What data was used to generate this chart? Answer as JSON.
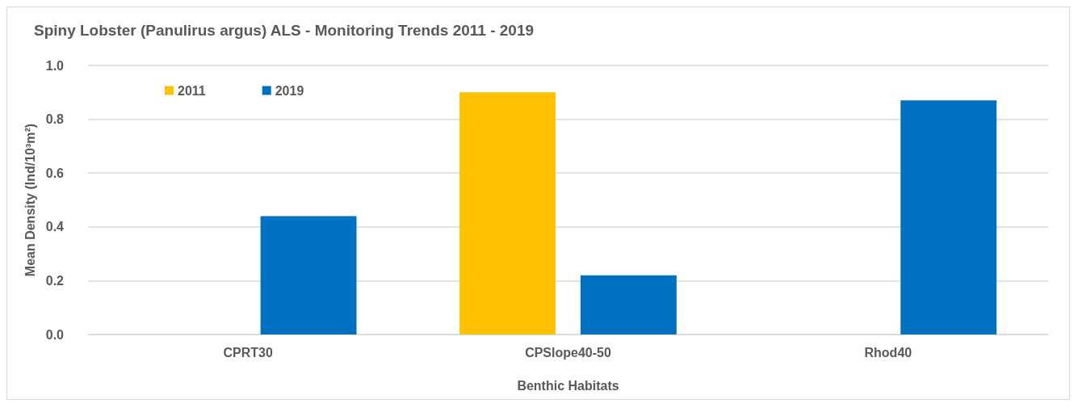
{
  "chart_data": {
    "type": "bar",
    "title": "Spiny Lobster (Panulirus argus) ALS - Monitoring Trends 2011 - 2019",
    "xlabel": "Benthic Habitats",
    "ylabel": "Mean Density (Ind/10³m²)",
    "categories": [
      "CPRT30",
      "CPSlope40-50",
      "Rhod40"
    ],
    "series": [
      {
        "name": "2011",
        "color": "#ffc000",
        "values": [
          0,
          0.9,
          0
        ]
      },
      {
        "name": "2019",
        "color": "#0070c0",
        "values": [
          0.44,
          0.22,
          0.87
        ]
      }
    ],
    "ylim": [
      0,
      1
    ],
    "yticks": [
      {
        "value": 0,
        "label": "0.0"
      },
      {
        "value": 0.2,
        "label": "0.2"
      },
      {
        "value": 0.4,
        "label": "0.4"
      },
      {
        "value": 0.6,
        "label": "0.6"
      },
      {
        "value": 0.8,
        "label": "0.8"
      },
      {
        "value": 1,
        "label": "1.0"
      }
    ],
    "grid": "y",
    "legend": "top left"
  }
}
